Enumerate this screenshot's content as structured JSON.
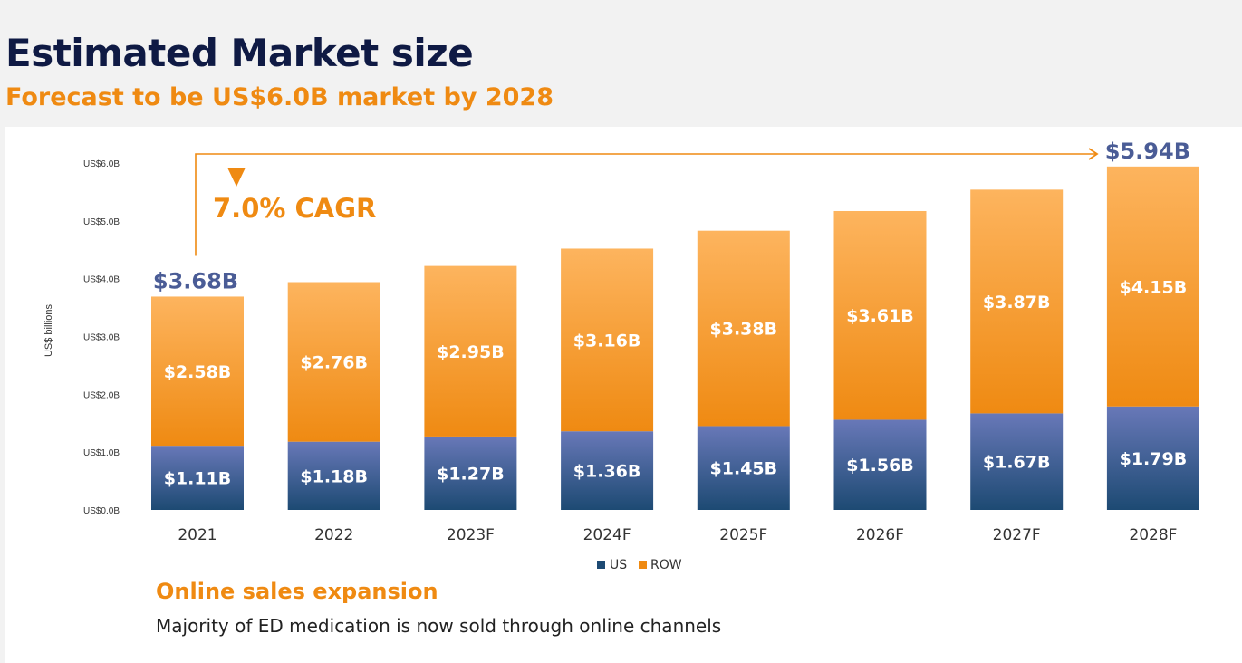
{
  "header": {
    "title": "Estimated Market size",
    "subtitle": "Forecast to be US$6.0B market by 2028"
  },
  "callout": {
    "heading": "Online sales expansion",
    "text": "Majority of ED medication is now sold through online channels"
  },
  "colors": {
    "us_top": "#6878b8",
    "us_bottom": "#1d4a73",
    "row_top": "#fdb45e",
    "row_bottom": "#ef8a12",
    "accent": "#ef8a12",
    "navy": "#1d3b6e",
    "total_label": "#4a5c96"
  },
  "chart_data": {
    "type": "bar",
    "stacked": true,
    "categories": [
      "2021",
      "2022",
      "2023F",
      "2024F",
      "2025F",
      "2026F",
      "2027F",
      "2028F"
    ],
    "series": [
      {
        "name": "US",
        "values": [
          1.11,
          1.18,
          1.27,
          1.36,
          1.45,
          1.56,
          1.67,
          1.79
        ],
        "labels": [
          "$1.11B",
          "$1.18B",
          "$1.27B",
          "$1.36B",
          "$1.45B",
          "$1.56B",
          "$1.67B",
          "$1.79B"
        ]
      },
      {
        "name": "ROW",
        "values": [
          2.58,
          2.76,
          2.95,
          3.16,
          3.38,
          3.61,
          3.87,
          4.15
        ],
        "labels": [
          "$2.58B",
          "$2.76B",
          "$2.95B",
          "$3.16B",
          "$3.38B",
          "$3.61B",
          "$3.87B",
          "$4.15B"
        ]
      }
    ],
    "ylabel": "US$ billions",
    "ylim": [
      0,
      6
    ],
    "yticks": [
      0,
      1,
      2,
      3,
      4,
      5,
      6
    ],
    "ytick_labels": [
      "US$0.0B",
      "US$1.0B",
      "US$2.0B",
      "US$3.0B",
      "US$4.0B",
      "US$5.0B",
      "US$6.0B"
    ],
    "grid": false,
    "legend": "bottom",
    "annotations": {
      "start_total": "$3.68B",
      "end_total": "$5.94B",
      "cagr": "7.0% CAGR"
    }
  }
}
